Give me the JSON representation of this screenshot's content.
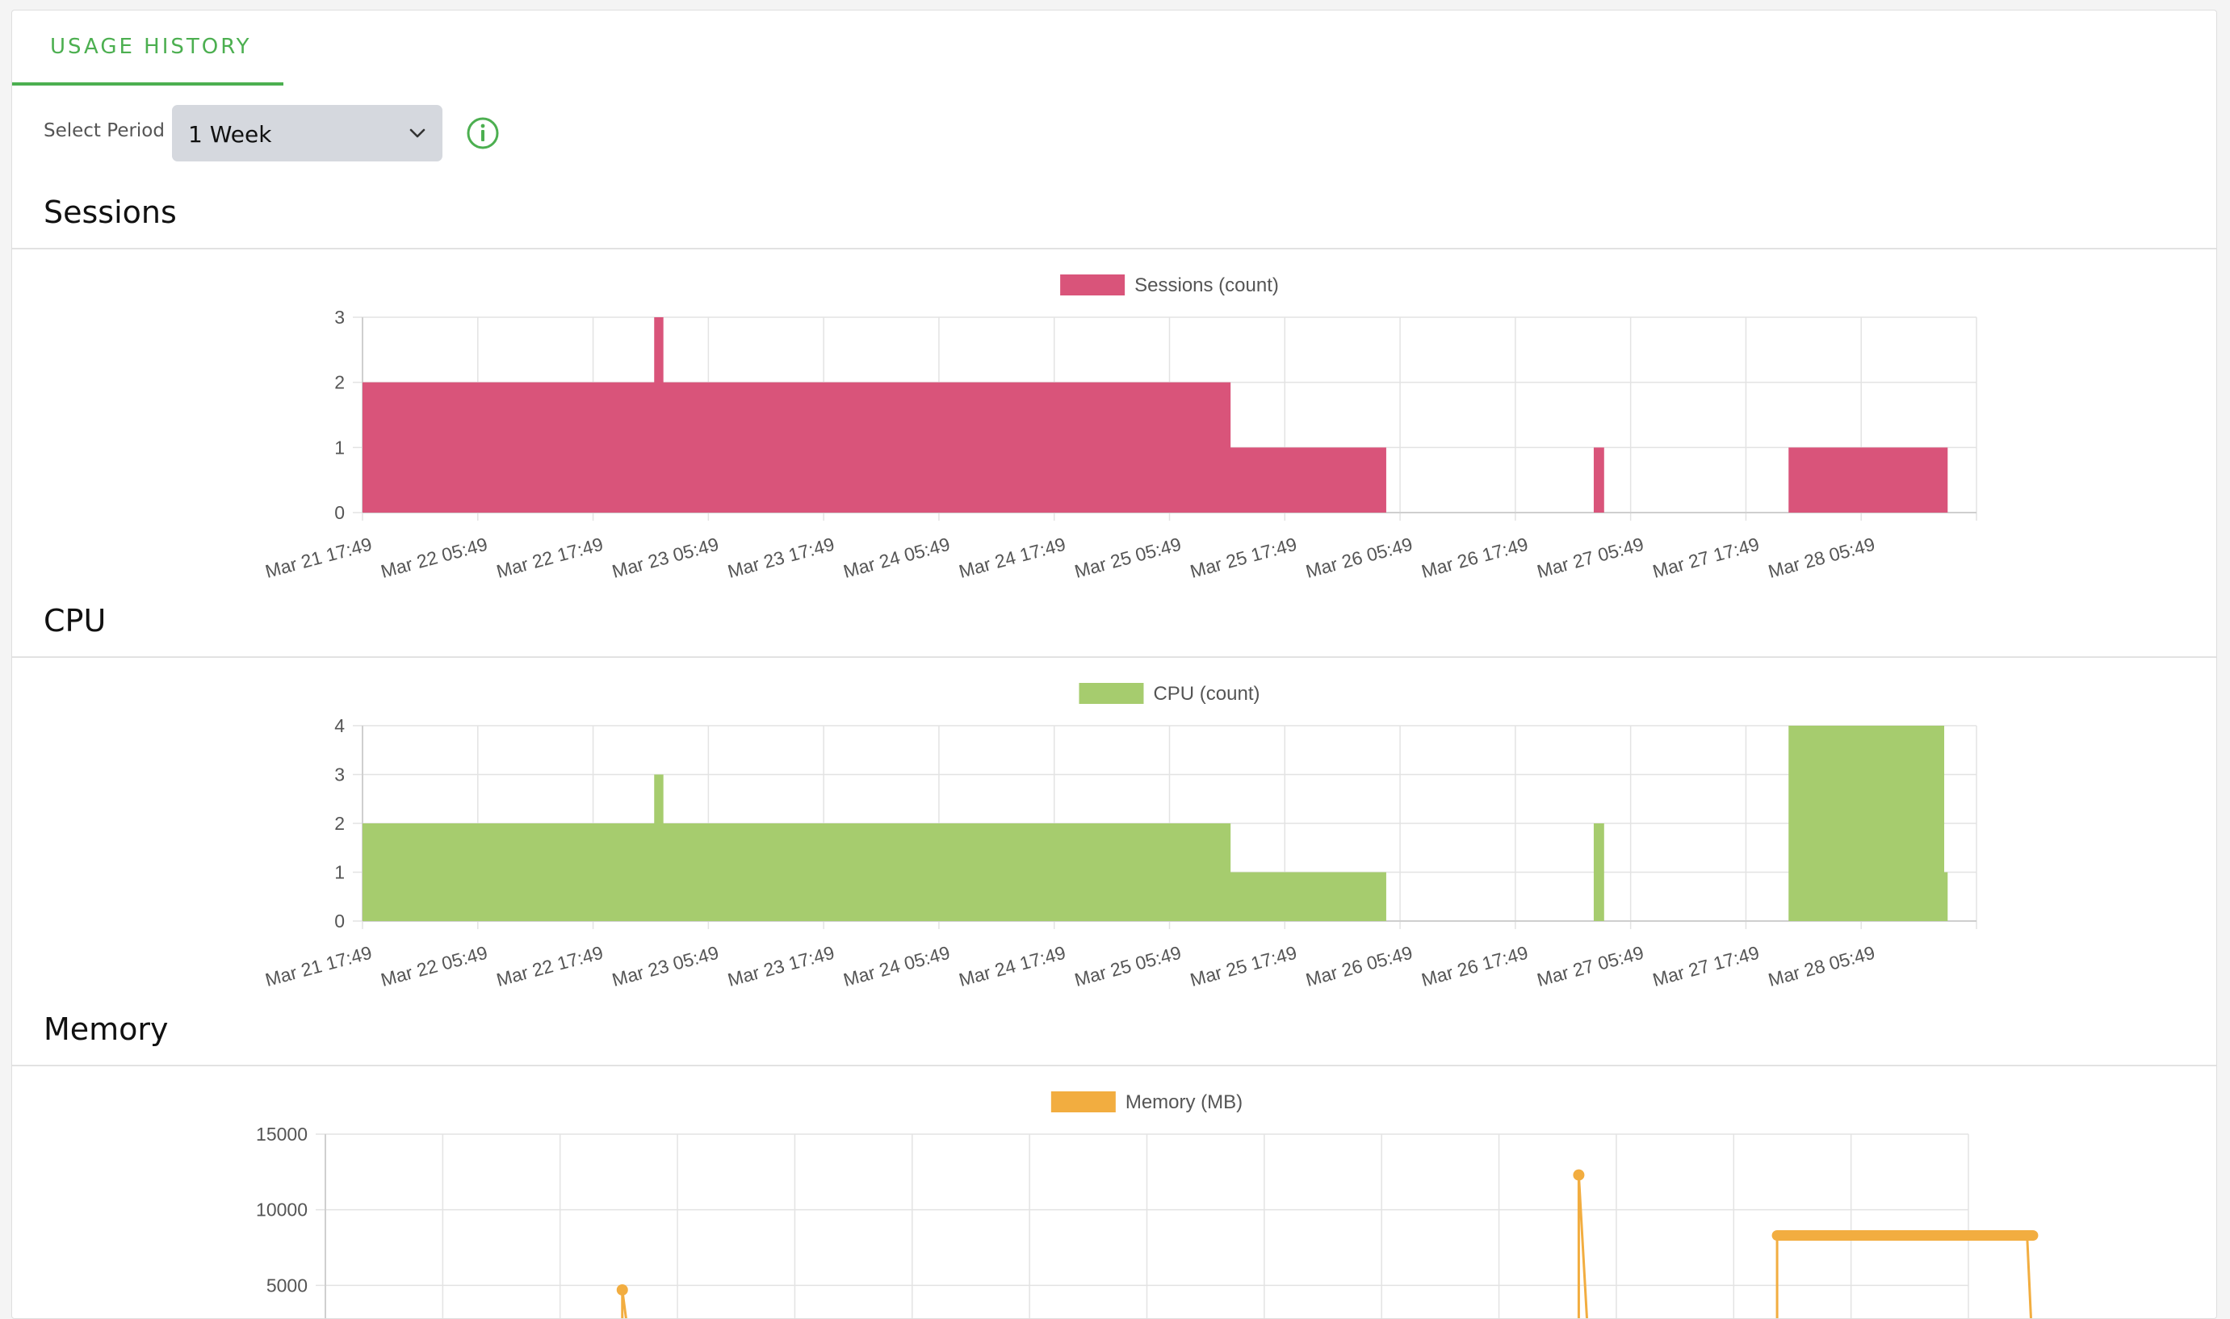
{
  "tabs": [
    {
      "label": "USAGE HISTORY",
      "active": true
    }
  ],
  "period": {
    "label": "Select Period",
    "value": "1 Week"
  },
  "icons": {
    "info": "info-circle-icon",
    "chevron": "chevron-down-icon"
  },
  "colors": {
    "accent": "#4caf50",
    "sessions": "#d9547a",
    "cpu": "#a6cc6e",
    "memory": "#f2ad40",
    "grid": "#e3e3e3"
  },
  "sections": {
    "sessions": {
      "title": "Sessions"
    },
    "cpu": {
      "title": "CPU"
    },
    "memory": {
      "title": "Memory"
    }
  },
  "chart_data": [
    {
      "id": "sessions",
      "type": "area",
      "legend": "Sessions (count)",
      "color": "#d9547a",
      "x_ticks": [
        "Mar 21 17:49",
        "Mar 22 05:49",
        "Mar 22 17:49",
        "Mar 23 05:49",
        "Mar 23 17:49",
        "Mar 24 05:49",
        "Mar 24 17:49",
        "Mar 25 05:49",
        "Mar 25 17:49",
        "Mar 26 05:49",
        "Mar 26 17:49",
        "Mar 27 05:49",
        "Mar 27 17:49",
        "Mar 28 05:49"
      ],
      "y_ticks": [
        0,
        1,
        2,
        3
      ],
      "ylim": [
        0,
        3
      ],
      "grid": true,
      "legend_position": "top",
      "points": [
        {
          "x": 0,
          "y": 2
        },
        {
          "x": 1.78,
          "y": 2
        },
        {
          "x": 1.78,
          "y": 3
        },
        {
          "x": 1.86,
          "y": 3
        },
        {
          "x": 1.86,
          "y": 2
        },
        {
          "x": 6.78,
          "y": 2
        },
        {
          "x": 6.78,
          "y": 1
        },
        {
          "x": 8.13,
          "y": 1
        },
        {
          "x": 8.13,
          "y": 0
        },
        {
          "x": 9.93,
          "y": 0
        },
        {
          "x": 9.93,
          "y": 1
        },
        {
          "x": 10.02,
          "y": 1
        },
        {
          "x": 10.02,
          "y": 0
        },
        {
          "x": 11.62,
          "y": 0
        },
        {
          "x": 11.62,
          "y": 1
        },
        {
          "x": 13.0,
          "y": 1
        },
        {
          "x": 13.0,
          "y": 0
        }
      ]
    },
    {
      "id": "cpu",
      "type": "area",
      "legend": "CPU (count)",
      "color": "#a6cc6e",
      "x_ticks": [
        "Mar 21 17:49",
        "Mar 22 05:49",
        "Mar 22 17:49",
        "Mar 23 05:49",
        "Mar 23 17:49",
        "Mar 24 05:49",
        "Mar 24 17:49",
        "Mar 25 05:49",
        "Mar 25 17:49",
        "Mar 26 05:49",
        "Mar 26 17:49",
        "Mar 27 05:49",
        "Mar 27 17:49",
        "Mar 28 05:49"
      ],
      "y_ticks": [
        0,
        1,
        2,
        3,
        4
      ],
      "ylim": [
        0,
        4
      ],
      "grid": true,
      "legend_position": "top",
      "points": [
        {
          "x": 0,
          "y": 2
        },
        {
          "x": 1.78,
          "y": 2
        },
        {
          "x": 1.78,
          "y": 3
        },
        {
          "x": 1.86,
          "y": 3
        },
        {
          "x": 1.86,
          "y": 2
        },
        {
          "x": 6.78,
          "y": 2
        },
        {
          "x": 6.78,
          "y": 1
        },
        {
          "x": 8.13,
          "y": 1
        },
        {
          "x": 8.13,
          "y": 0
        },
        {
          "x": 9.93,
          "y": 0
        },
        {
          "x": 9.93,
          "y": 2
        },
        {
          "x": 10.02,
          "y": 2
        },
        {
          "x": 10.02,
          "y": 0
        },
        {
          "x": 11.62,
          "y": 0
        },
        {
          "x": 11.62,
          "y": 4
        },
        {
          "x": 12.97,
          "y": 4
        },
        {
          "x": 12.97,
          "y": 1
        },
        {
          "x": 13.0,
          "y": 1
        },
        {
          "x": 13.0,
          "y": 0
        }
      ]
    },
    {
      "id": "memory",
      "type": "line",
      "legend": "Memory (MB)",
      "color": "#f2ad40",
      "y_ticks": [
        5000,
        10000,
        15000
      ],
      "ylim": [
        0,
        15000
      ],
      "grid": true,
      "legend_position": "top",
      "visible_range": [
        3800,
        15000
      ],
      "markers": [
        {
          "x": 1.78,
          "y": 4700
        },
        {
          "x": 9.93,
          "y": 12300
        }
      ],
      "segments": [
        [
          {
            "x": 1.78,
            "y": 0
          },
          {
            "x": 1.78,
            "y": 4700
          },
          {
            "x": 1.86,
            "y": 0
          }
        ],
        [
          {
            "x": 9.93,
            "y": 0
          },
          {
            "x": 9.93,
            "y": 12300
          },
          {
            "x": 10.02,
            "y": 0
          }
        ],
        [
          {
            "x": 11.62,
            "y": 0
          },
          {
            "x": 11.62,
            "y": 8300
          },
          {
            "x": 13.75,
            "y": 8300
          },
          {
            "x": 13.8,
            "y": 0
          }
        ]
      ],
      "thick_segment": {
        "x0": 11.62,
        "x1": 13.8,
        "y": 8300
      }
    }
  ]
}
